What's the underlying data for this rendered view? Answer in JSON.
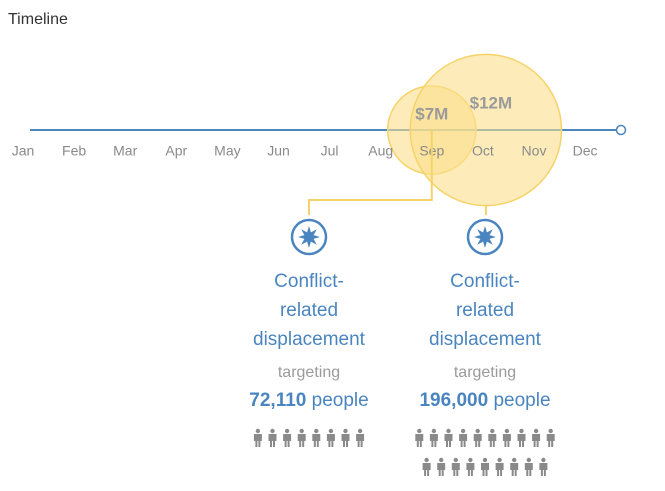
{
  "title": "Timeline",
  "months": [
    "Jan",
    "Feb",
    "Mar",
    "Apr",
    "May",
    "Jun",
    "Jul",
    "Aug",
    "Sep",
    "Oct",
    "Nov",
    "Dec"
  ],
  "events": [
    {
      "month": "Sep",
      "amount": 7000000,
      "amount_label": "$7M",
      "title_lines": [
        "Conflict-",
        "related",
        "displacement"
      ],
      "targeting": "targeting",
      "people": "72,110",
      "people_suffix": "people"
    },
    {
      "month": "Oct",
      "amount": 12000000,
      "amount_label": "$12M",
      "title_lines": [
        "Conflict-",
        "related",
        "displacement"
      ],
      "targeting": "targeting",
      "people": "196,000",
      "people_suffix": "people"
    }
  ]
}
